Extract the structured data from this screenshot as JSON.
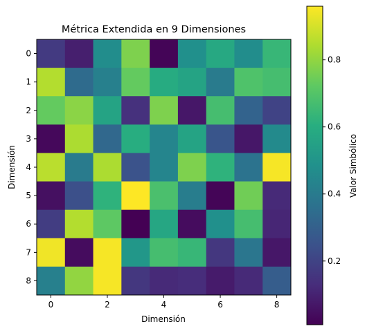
{
  "chart_data": {
    "type": "heatmap",
    "title": "Métrica Extendida en 9 Dimensiones",
    "xlabel": "Dimensión",
    "ylabel": "Dimensión",
    "x_ticks": [
      0,
      2,
      4,
      6,
      8
    ],
    "y_ticks": [
      0,
      1,
      2,
      3,
      4,
      5,
      6,
      7,
      8
    ],
    "colorbar": {
      "label": "Valor Simbólico",
      "ticks": [
        0.2,
        0.4,
        0.6,
        0.8
      ],
      "range": [
        0.01,
        0.96
      ],
      "colormap": "viridis"
    },
    "values": [
      [
        0.17,
        0.09,
        0.47,
        0.77,
        0.02,
        0.48,
        0.58,
        0.47,
        0.64
      ],
      [
        0.85,
        0.34,
        0.42,
        0.73,
        0.59,
        0.56,
        0.4,
        0.69,
        0.67
      ],
      [
        0.73,
        0.79,
        0.56,
        0.14,
        0.77,
        0.07,
        0.67,
        0.31,
        0.2
      ],
      [
        0.03,
        0.84,
        0.33,
        0.6,
        0.44,
        0.56,
        0.26,
        0.07,
        0.46
      ],
      [
        0.86,
        0.4,
        0.84,
        0.25,
        0.44,
        0.77,
        0.62,
        0.37,
        0.95
      ],
      [
        0.05,
        0.24,
        0.62,
        0.96,
        0.68,
        0.41,
        0.02,
        0.75,
        0.12
      ],
      [
        0.18,
        0.85,
        0.72,
        0.01,
        0.57,
        0.04,
        0.48,
        0.67,
        0.11
      ],
      [
        0.94,
        0.04,
        0.95,
        0.51,
        0.67,
        0.64,
        0.16,
        0.38,
        0.07
      ],
      [
        0.42,
        0.8,
        0.95,
        0.16,
        0.12,
        0.13,
        0.08,
        0.12,
        0.29
      ]
    ]
  }
}
